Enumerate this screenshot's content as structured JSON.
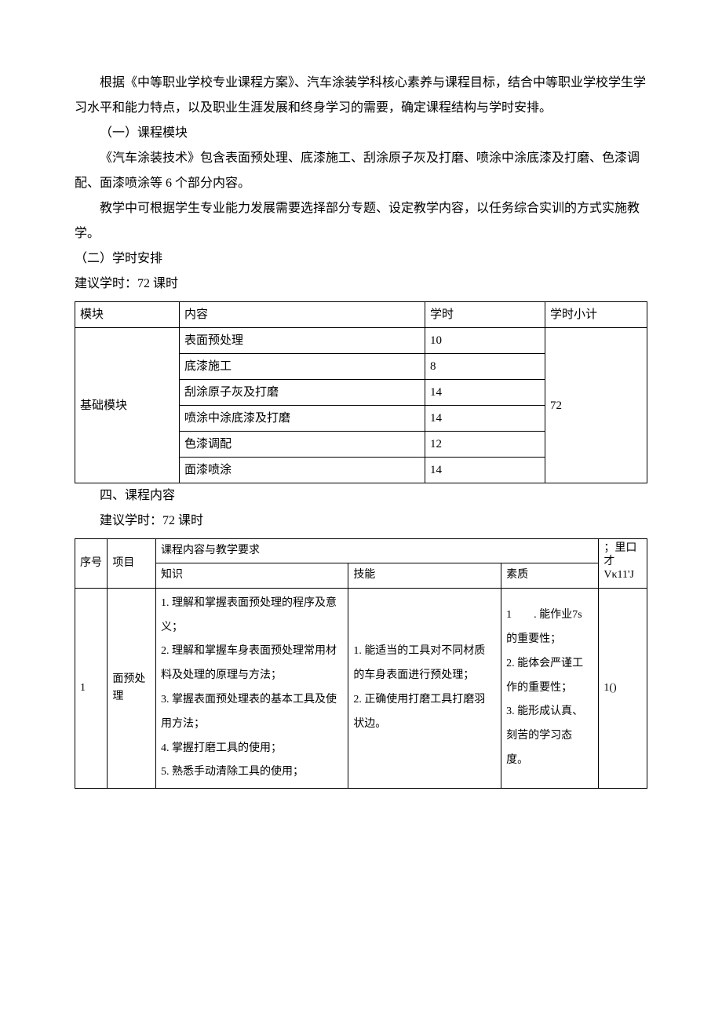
{
  "paragraphs": {
    "p1": "根据《中等职业学校专业课程方案》、汽车涂装学科核心素养与课程目标，结合中等职业学校学生学习水平和能力特点，以及职业生涯发展和终身学习的需要，确定课程结构与学时安排。",
    "s1": "（一）课程模块",
    "p2": "《汽车涂装技术》包含表面预处理、底漆施工、刮涂原子灰及打磨、喷涂中涂底漆及打磨、色漆调配、面漆喷涂等 6 个部分内容。",
    "p3": "教学中可根据学生专业能力发展需要选择部分专题、设定教学内容，以任务综合实训的方式实施教学。",
    "s2": "（二）学时安排",
    "p4": "建议学时：72 课时",
    "s3": "四、课程内容",
    "p5": "建议学时：72 课时"
  },
  "table1": {
    "headers": {
      "c1": "模块",
      "c2": "内容",
      "c3": "学时",
      "c4": "学时小计"
    },
    "group_label": "基础模块",
    "subtotal": "72",
    "rows": [
      {
        "content": "表面预处理",
        "hours": "10"
      },
      {
        "content": "底漆施工",
        "hours": "8"
      },
      {
        "content": "刮涂原子灰及打磨",
        "hours": "14"
      },
      {
        "content": "喷涂中涂底漆及打磨",
        "hours": "14"
      },
      {
        "content": "色漆调配",
        "hours": "12"
      },
      {
        "content": "面漆喷涂",
        "hours": "14"
      }
    ]
  },
  "table2": {
    "headers": {
      "seq": "序号",
      "proj": "项目",
      "group": "课程内容与教学要求",
      "know": "知识",
      "skill": "技能",
      "qual": "素质",
      "corner_top": "；里口才",
      "corner_bot": "Vκ11'J"
    },
    "row1": {
      "seq": "1",
      "proj": "面预处理",
      "know": "1. 理解和掌握表面预处理的程序及意义；\n2. 理解和掌握车身表面预处理常用材料及处理的原理与方法；\n3. 掌握表面预处理表的基本工具及使用方法；\n4. 掌握打磨工具的使用；\n5. 熟悉手动清除工具的使用；",
      "skill": "1. 能适当的工具对不同材质的车身表面进行预处理；\n2. 正确使用打磨工具打磨羽状边。",
      "qual": "1  . 能作业7s 的重要性；\n2. 能体会严谨工作的重要性；\n3. 能形成认真、刻苦的学习态度。",
      "hours": "1()"
    }
  }
}
